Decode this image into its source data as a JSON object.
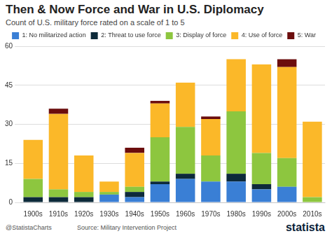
{
  "chart_data": {
    "type": "bar",
    "stacked": true,
    "title": "Then & Now Force and War in U.S. Diplomacy",
    "subtitle": "Count of  U.S. military force rated on a scale of 1 to 5",
    "annotations": [
      "@StatistaCharts",
      "Source: Military Intervention Project",
      "statista"
    ],
    "categories": [
      "1900s",
      "1910s",
      "1920s",
      "1930s",
      "1940s",
      "1950s",
      "1960s",
      "1970s",
      "1980s",
      "1990s",
      "2000s",
      "2010s"
    ],
    "series": [
      {
        "name": "1: No militarized action",
        "color": "#3a7fd5",
        "values": [
          0,
          0,
          0,
          3,
          2,
          7,
          9,
          8,
          8,
          5,
          6,
          0
        ]
      },
      {
        "name": "2: Threat to use force",
        "color": "#0d2a3a",
        "values": [
          2,
          2,
          2,
          0,
          2,
          1,
          2,
          0,
          3,
          2,
          0,
          0
        ]
      },
      {
        "name": "3: Display of force",
        "color": "#8dc63f",
        "values": [
          7,
          3,
          2,
          1,
          2,
          17,
          18,
          10,
          24,
          12,
          11,
          2
        ]
      },
      {
        "name": "4: Use of force",
        "color": "#fbb829",
        "values": [
          15,
          29,
          14,
          4,
          13,
          13,
          17,
          14,
          20,
          34,
          35,
          29
        ]
      },
      {
        "name": "5: War",
        "color": "#6b0d0d",
        "values": [
          0,
          2,
          0,
          0,
          2,
          1,
          0,
          1,
          0,
          0,
          3,
          0
        ]
      }
    ],
    "ylim": [
      0,
      60
    ],
    "yticks": [
      0,
      15,
      30,
      45,
      60
    ],
    "grid": true,
    "legend": "top"
  }
}
